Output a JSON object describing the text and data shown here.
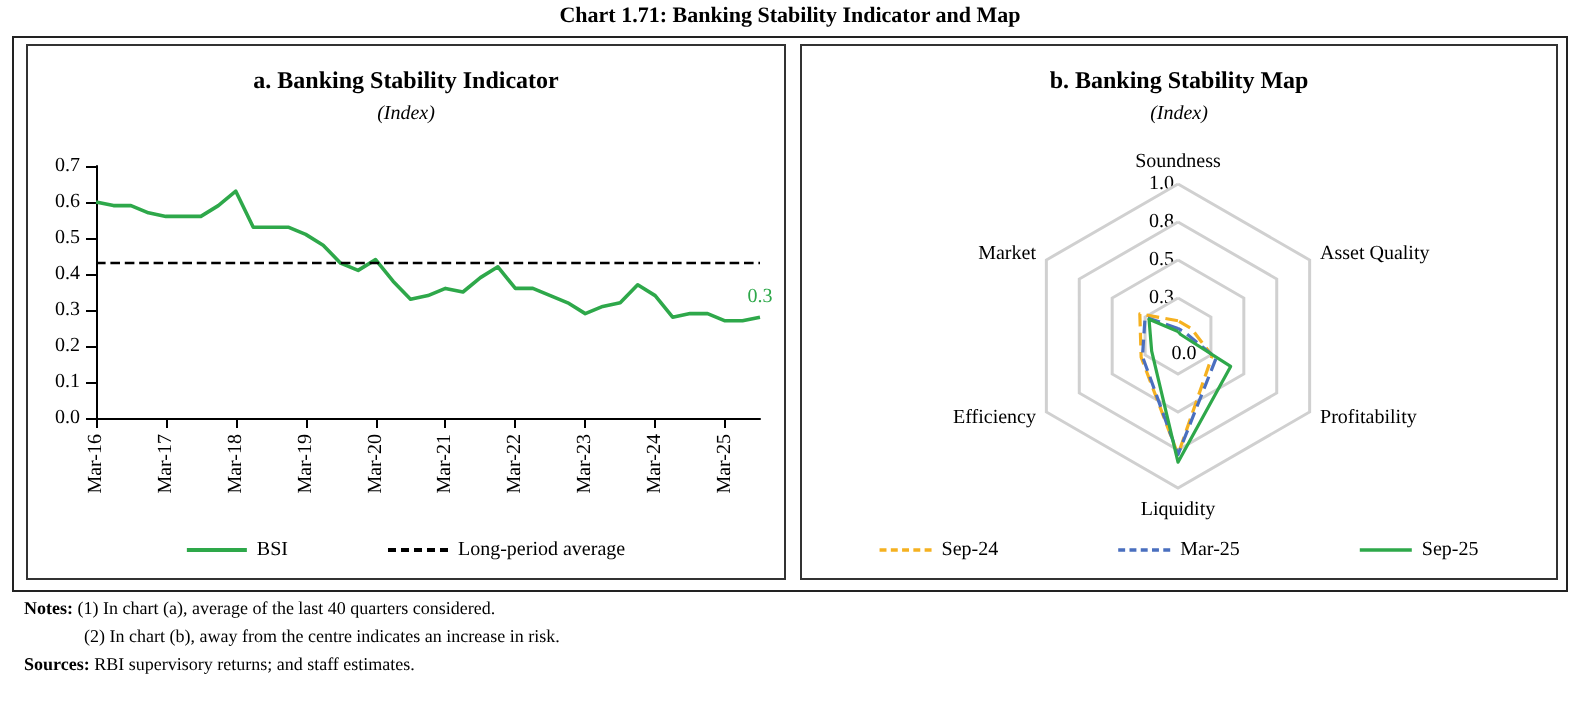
{
  "chart_data": [
    {
      "type": "line",
      "title": "a. Banking Stability Indicator",
      "subtitle": "(Index)",
      "annotations": [
        "Chart 1.71: Banking Stability Indicator and Map"
      ],
      "categories": [
        "Mar-16",
        null,
        null,
        null,
        "Mar-17",
        null,
        null,
        null,
        "Mar-18",
        null,
        null,
        null,
        "Mar-19",
        null,
        null,
        null,
        "Mar-20",
        null,
        null,
        null,
        "Mar-21",
        null,
        null,
        null,
        "Mar-22",
        null,
        null,
        null,
        "Mar-23",
        null,
        null,
        null,
        "Mar-24",
        null,
        null,
        null,
        "Mar-25",
        null,
        null
      ],
      "series": [
        {
          "name": "BSI",
          "color": "#2ea84a",
          "values": [
            0.6,
            0.59,
            0.59,
            0.57,
            0.56,
            0.56,
            0.56,
            0.59,
            0.63,
            0.53,
            0.53,
            0.53,
            0.51,
            0.48,
            0.43,
            0.41,
            0.44,
            0.38,
            0.33,
            0.34,
            0.36,
            0.35,
            0.39,
            0.42,
            0.36,
            0.36,
            0.34,
            0.32,
            0.29,
            0.31,
            0.32,
            0.37,
            0.34,
            0.28,
            0.29,
            0.29,
            0.27,
            0.27,
            0.28
          ],
          "value_labels": [
            null,
            null,
            null,
            null,
            null,
            null,
            null,
            null,
            null,
            null,
            null,
            null,
            null,
            null,
            null,
            null,
            null,
            null,
            null,
            null,
            null,
            null,
            null,
            null,
            null,
            null,
            null,
            null,
            null,
            null,
            null,
            null,
            null,
            null,
            null,
            null,
            null,
            null,
            "0.3"
          ]
        }
      ],
      "ref_lines": [
        {
          "axis": "y",
          "value": 0.43,
          "label": "Long-period average",
          "color": "#000000",
          "line_style": "dashed"
        }
      ],
      "ylim": [
        0,
        0.7
      ],
      "yticks": [
        {
          "value": 0,
          "label": "0.0"
        },
        0.1,
        0.2,
        0.3,
        0.4,
        0.5,
        0.6,
        0.7
      ],
      "grid": false,
      "legend": "bottom"
    },
    {
      "type": "radar",
      "title": "b. Banking Stability Map",
      "subtitle": "(Index)",
      "annotations": [
        "Notes: (1) In chart (a), average of the last 40 quarters considered.",
        "(2) In chart (b), away from the centre indicates an increase in risk.",
        "Sources: RBI supervisory returns; and staff estimates."
      ],
      "categories": [
        "Soundness",
        "Asset Quality",
        "Profitability",
        "Liquidity",
        "Efficiency",
        "Market"
      ],
      "series": [
        {
          "name": "Sep-24",
          "color": "#f5b120",
          "line_style": "dashed",
          "values": [
            0.1,
            0.1,
            0.26,
            0.78,
            0.28,
            0.29
          ]
        },
        {
          "name": "Mar-25",
          "color": "#4a6fbf",
          "line_style": "dashed",
          "values": [
            0.05,
            0.05,
            0.29,
            0.78,
            0.27,
            0.25
          ]
        },
        {
          "name": "Sep-25",
          "color": "#2ea84a",
          "line_style": "solid",
          "values": [
            0.03,
            0.02,
            0.4,
            0.83,
            0.2,
            0.22
          ]
        }
      ],
      "ylim": [
        0,
        1
      ],
      "yticks": [
        {
          "value": 0,
          "label": "0.0"
        },
        {
          "value": 0.25,
          "label": "0.3"
        },
        {
          "value": 0.5,
          "label": "0.5"
        },
        {
          "value": 0.75,
          "label": "0.8"
        },
        {
          "value": 1,
          "label": "1.0"
        }
      ],
      "legend": "bottom"
    }
  ]
}
